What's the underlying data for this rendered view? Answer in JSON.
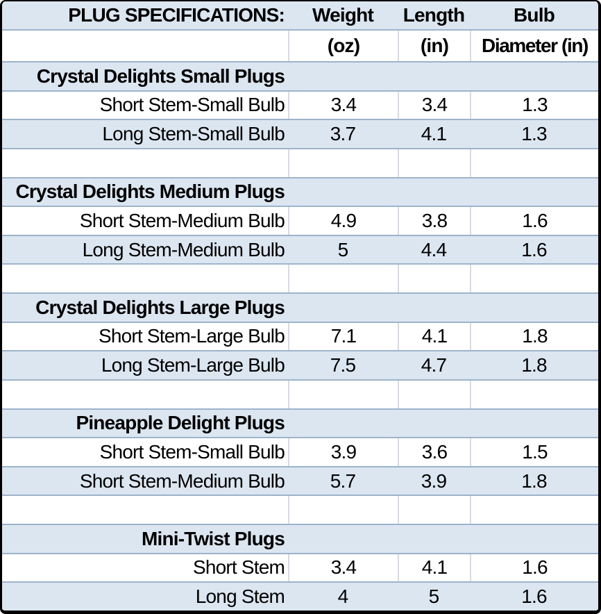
{
  "title_row": {
    "title": "PLUG SPECIFICATIONS:",
    "weight": "Weight",
    "length": "Length",
    "bulb": "Bulb"
  },
  "units_row": {
    "weight": "(oz)",
    "length": "(in)",
    "bulb": "Diameter (in)"
  },
  "chart_data": {
    "type": "table",
    "title": "PLUG SPECIFICATIONS:",
    "columns": [
      "",
      "Weight (oz)",
      "Length (in)",
      "Bulb Diameter (in)"
    ],
    "sections": [
      {
        "title": "Crystal Delights Small Plugs",
        "rows": [
          {
            "label": "Short Stem-Small Bulb",
            "weight": 3.4,
            "length": 3.4,
            "diameter": 1.3
          },
          {
            "label": "Long Stem-Small Bulb",
            "weight": 3.7,
            "length": 4.1,
            "diameter": 1.3
          }
        ]
      },
      {
        "title": "Crystal Delights Medium Plugs",
        "rows": [
          {
            "label": "Short Stem-Medium Bulb",
            "weight": 4.9,
            "length": 3.8,
            "diameter": 1.6
          },
          {
            "label": "Long Stem-Medium Bulb",
            "weight": 5,
            "length": 4.4,
            "diameter": 1.6
          }
        ]
      },
      {
        "title": "Crystal Delights Large Plugs",
        "rows": [
          {
            "label": "Short Stem-Large Bulb",
            "weight": 7.1,
            "length": 4.1,
            "diameter": 1.8
          },
          {
            "label": "Long Stem-Large Bulb",
            "weight": 7.5,
            "length": 4.7,
            "diameter": 1.8
          }
        ]
      },
      {
        "title": "Pineapple Delight Plugs",
        "rows": [
          {
            "label": "Short Stem-Small Bulb",
            "weight": 3.9,
            "length": 3.6,
            "diameter": 1.5
          },
          {
            "label": "Short Stem-Medium Bulb",
            "weight": 5.7,
            "length": 3.9,
            "diameter": 1.8
          }
        ]
      },
      {
        "title": "Mini-Twist Plugs",
        "rows": [
          {
            "label": "Short Stem",
            "weight": 3.4,
            "length": 4.1,
            "diameter": 1.6
          },
          {
            "label": "Long Stem",
            "weight": 4,
            "length": 5,
            "diameter": 1.6
          }
        ]
      }
    ]
  },
  "colors": {
    "band_fill": "#dce6f1",
    "grid_line": "#9db3cb",
    "column_line": "#d8dce2",
    "outer_border": "#000000",
    "text": "#000000"
  }
}
